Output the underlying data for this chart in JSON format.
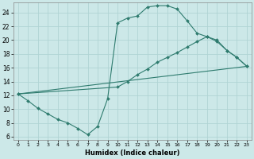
{
  "xlabel": "Humidex (Indice chaleur)",
  "xlim": [
    -0.5,
    23.5
  ],
  "ylim": [
    5.5,
    25.5
  ],
  "xticks": [
    0,
    1,
    2,
    3,
    4,
    5,
    6,
    7,
    8,
    9,
    10,
    11,
    12,
    13,
    14,
    15,
    16,
    17,
    18,
    19,
    20,
    21,
    22,
    23
  ],
  "yticks": [
    6,
    8,
    10,
    12,
    14,
    16,
    18,
    20,
    22,
    24
  ],
  "bg_color": "#cce8e8",
  "line_color": "#2e7b6e",
  "grid_color": "#b0d4d4",
  "line1_x": [
    0,
    1,
    2,
    3,
    4,
    5,
    6,
    7,
    8,
    9,
    10,
    11,
    12,
    13,
    14,
    15,
    16,
    17,
    18,
    19,
    20,
    21,
    22,
    23
  ],
  "line1_y": [
    12.2,
    11.2,
    10.1,
    9.3,
    8.5,
    8.0,
    7.2,
    6.3,
    7.5,
    11.5,
    22.5,
    23.2,
    23.5,
    24.8,
    25.0,
    25.0,
    24.5,
    22.8,
    21.0,
    20.5,
    19.8,
    18.5,
    17.5,
    16.2
  ],
  "line2_x": [
    0,
    10,
    11,
    12,
    13,
    14,
    15,
    16,
    17,
    18,
    19,
    20,
    21,
    22,
    23
  ],
  "line2_y": [
    12.2,
    13.2,
    14.0,
    15.0,
    15.8,
    16.8,
    17.5,
    18.2,
    19.0,
    19.8,
    20.5,
    20.0,
    18.5,
    17.5,
    16.2
  ],
  "line3_x": [
    0,
    23
  ],
  "line3_y": [
    12.2,
    16.2
  ]
}
